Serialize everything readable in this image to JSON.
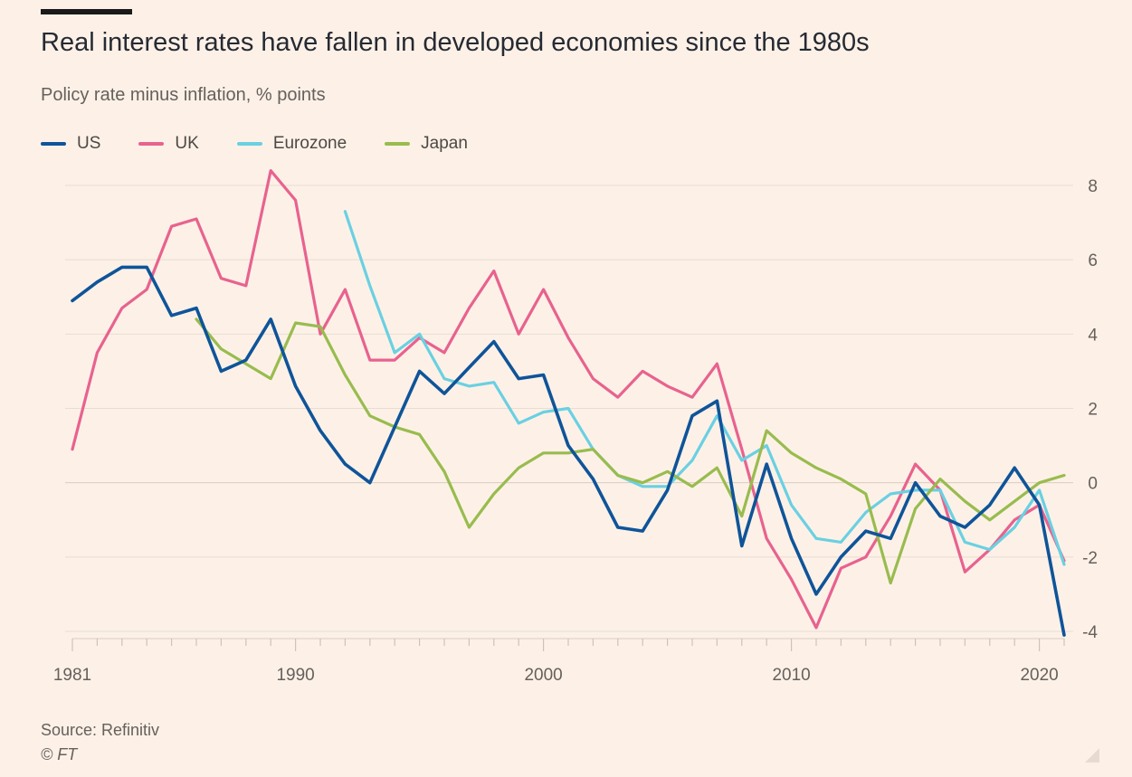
{
  "header": {
    "title": "Real interest rates have fallen in developed economies since the 1980s",
    "subtitle": "Policy rate minus inflation, % points"
  },
  "footer": {
    "source": "Source: Refinitiv",
    "copyright": "© FT"
  },
  "colors": {
    "background": "#fdf1e7",
    "grid": "#e8ddd3",
    "axis_text": "#66605c",
    "US": "#0f5499",
    "UK": "#e8628f",
    "Eurozone": "#6ad0e2",
    "Japan": "#98bc4e"
  },
  "chart_data": {
    "type": "line",
    "title": "Real interest rates have fallen in developed economies since the 1980s",
    "subtitle": "Policy rate minus inflation, % points",
    "xlim": [
      1981,
      2021
    ],
    "ylim": [
      -4,
      8
    ],
    "x_ticks": [
      1981,
      1990,
      2000,
      2010,
      2020
    ],
    "y_ticks": [
      -4,
      -2,
      0,
      2,
      4,
      6,
      8
    ],
    "y_tick_labels": [
      "-4",
      "-2",
      "0",
      "2",
      "4",
      "6",
      "8"
    ],
    "grid": true,
    "legend_position": "top-left",
    "series": [
      {
        "name": "US",
        "x": [
          1981,
          1982,
          1983,
          1984,
          1985,
          1986,
          1987,
          1988,
          1989,
          1990,
          1991,
          1992,
          1993,
          1994,
          1995,
          1996,
          1997,
          1998,
          1999,
          2000,
          2001,
          2002,
          2003,
          2004,
          2005,
          2006,
          2007,
          2008,
          2009,
          2010,
          2011,
          2012,
          2013,
          2014,
          2015,
          2016,
          2017,
          2018,
          2019,
          2020,
          2021
        ],
        "values": [
          4.9,
          5.4,
          5.8,
          5.8,
          4.5,
          4.7,
          3.0,
          3.3,
          4.4,
          2.6,
          1.4,
          0.5,
          0.0,
          1.5,
          3.0,
          2.4,
          3.1,
          3.8,
          2.8,
          2.9,
          1.0,
          0.1,
          -1.2,
          -1.3,
          -0.2,
          1.8,
          2.2,
          -1.7,
          0.5,
          -1.5,
          -3.0,
          -2.0,
          -1.3,
          -1.5,
          0.0,
          -0.9,
          -1.2,
          -0.6,
          0.4,
          -0.6,
          -4.1
        ]
      },
      {
        "name": "UK",
        "x": [
          1981,
          1982,
          1983,
          1984,
          1985,
          1986,
          1987,
          1988,
          1989,
          1990,
          1991,
          1992,
          1993,
          1994,
          1995,
          1996,
          1997,
          1998,
          1999,
          2000,
          2001,
          2002,
          2003,
          2004,
          2005,
          2006,
          2007,
          2008,
          2009,
          2010,
          2011,
          2012,
          2013,
          2014,
          2015,
          2016,
          2017,
          2018,
          2019,
          2020,
          2021
        ],
        "values": [
          0.9,
          3.5,
          4.7,
          5.2,
          6.9,
          7.1,
          5.5,
          5.3,
          8.4,
          7.6,
          4.0,
          5.2,
          3.3,
          3.3,
          3.9,
          3.5,
          4.7,
          5.7,
          4.0,
          5.2,
          3.9,
          2.8,
          2.3,
          3.0,
          2.6,
          2.3,
          3.2,
          0.9,
          -1.5,
          -2.6,
          -3.9,
          -2.3,
          -2.0,
          -0.9,
          0.5,
          -0.2,
          -2.4,
          -1.8,
          -1.0,
          -0.6,
          -2.1
        ]
      },
      {
        "name": "Eurozone",
        "x": [
          1992,
          1993,
          1994,
          1995,
          1996,
          1997,
          1998,
          1999,
          2000,
          2001,
          2002,
          2003,
          2004,
          2005,
          2006,
          2007,
          2008,
          2009,
          2010,
          2011,
          2012,
          2013,
          2014,
          2015,
          2016,
          2017,
          2018,
          2019,
          2020,
          2021
        ],
        "values": [
          7.3,
          5.3,
          3.5,
          4.0,
          2.8,
          2.6,
          2.7,
          1.6,
          1.9,
          2.0,
          0.9,
          0.2,
          -0.1,
          -0.1,
          0.6,
          1.8,
          0.6,
          1.0,
          -0.6,
          -1.5,
          -1.6,
          -0.8,
          -0.3,
          -0.2,
          -0.2,
          -1.6,
          -1.8,
          -1.2,
          -0.2,
          -2.2
        ]
      },
      {
        "name": "Japan",
        "x": [
          1986,
          1987,
          1988,
          1989,
          1990,
          1991,
          1992,
          1993,
          1994,
          1995,
          1996,
          1997,
          1998,
          1999,
          2000,
          2001,
          2002,
          2003,
          2004,
          2005,
          2006,
          2007,
          2008,
          2009,
          2010,
          2011,
          2012,
          2013,
          2014,
          2015,
          2016,
          2017,
          2018,
          2019,
          2020,
          2021
        ],
        "values": [
          4.4,
          3.6,
          3.2,
          2.8,
          4.3,
          4.2,
          2.9,
          1.8,
          1.5,
          1.3,
          0.3,
          -1.2,
          -0.3,
          0.4,
          0.8,
          0.8,
          0.9,
          0.2,
          0.0,
          0.3,
          -0.1,
          0.4,
          -0.9,
          1.4,
          0.8,
          0.4,
          0.1,
          -0.3,
          -2.7,
          -0.7,
          0.1,
          -0.5,
          -1.0,
          -0.5,
          0.0,
          0.2
        ]
      }
    ]
  }
}
